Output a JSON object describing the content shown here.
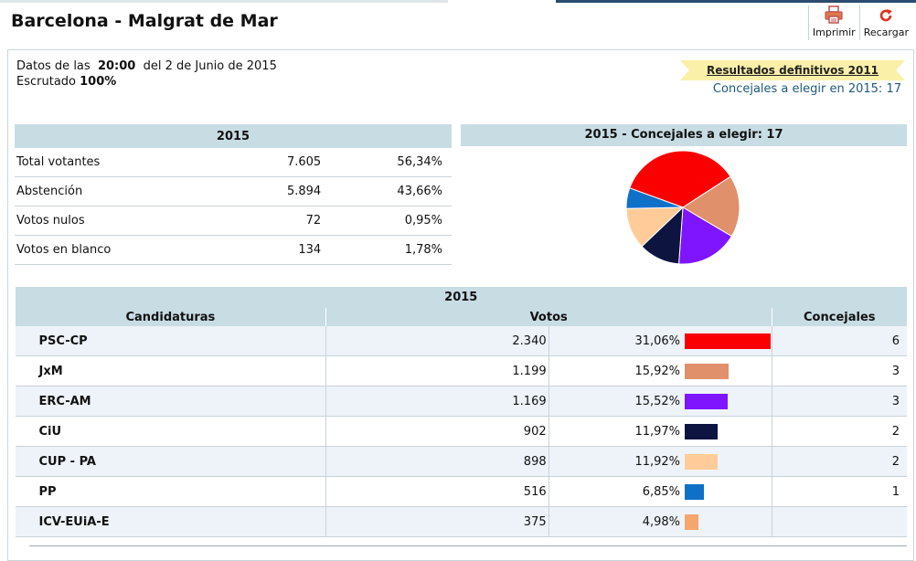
{
  "page": {
    "title": "Barcelona - Malgrat de Mar"
  },
  "toolbar": {
    "print_label": "Imprimir",
    "reload_label": "Recargar"
  },
  "status": {
    "prefix": "Datos de las",
    "time": "20:00",
    "date_text": "del 2 de Junio de 2015",
    "escrutado_label": "Escrutado",
    "escrutado_value": "100%"
  },
  "previous": {
    "link": "Resultados definitivos 2011",
    "concejales_text": "Concejales a elegir en 2015: 17"
  },
  "summary": {
    "header": "2015",
    "rows": [
      {
        "label": "Total votantes",
        "value": "7.605",
        "pct": "56,34%"
      },
      {
        "label": "Abstención",
        "value": "5.894",
        "pct": "43,66%"
      },
      {
        "label": "Votos nulos",
        "value": "72",
        "pct": "0,95%"
      },
      {
        "label": "Votos en blanco",
        "value": "134",
        "pct": "1,78%"
      }
    ]
  },
  "pie": {
    "header": "2015 - Concejales a elegir: 17",
    "slices": [
      {
        "name": "PSC-CP",
        "seats": 6,
        "color": "#fa0000"
      },
      {
        "name": "JxM",
        "seats": 3,
        "color": "#e0906a"
      },
      {
        "name": "ERC-AM",
        "seats": 3,
        "color": "#7f14ff"
      },
      {
        "name": "CiU",
        "seats": 2,
        "color": "#0d1440"
      },
      {
        "name": "CUP - PA",
        "seats": 2,
        "color": "#ffcc99"
      },
      {
        "name": "PP",
        "seats": 1,
        "color": "#0f70c8"
      }
    ]
  },
  "parties": {
    "year_header": "2015",
    "col_candidaturas": "Candidaturas",
    "col_votos": "Votos",
    "col_concejales": "Concejales",
    "rows": [
      {
        "name": "PSC-CP",
        "votes": "2.340",
        "pct": "31,06%",
        "share": 31.06,
        "seats": "6",
        "color": "#fa0000"
      },
      {
        "name": "JxM",
        "votes": "1.199",
        "pct": "15,92%",
        "share": 15.92,
        "seats": "3",
        "color": "#e0906a"
      },
      {
        "name": "ERC-AM",
        "votes": "1.169",
        "pct": "15,52%",
        "share": 15.52,
        "seats": "3",
        "color": "#7f14ff"
      },
      {
        "name": "CiU",
        "votes": "902",
        "pct": "11,97%",
        "share": 11.97,
        "seats": "2",
        "color": "#0d1440"
      },
      {
        "name": "CUP - PA",
        "votes": "898",
        "pct": "11,92%",
        "share": 11.92,
        "seats": "2",
        "color": "#ffcc99"
      },
      {
        "name": "PP",
        "votes": "516",
        "pct": "6,85%",
        "share": 6.85,
        "seats": "1",
        "color": "#0f70c8"
      },
      {
        "name": "ICV-EUiA-E",
        "votes": "375",
        "pct": "4,98%",
        "share": 4.98,
        "seats": "",
        "color": "#f5a56e"
      }
    ]
  }
}
